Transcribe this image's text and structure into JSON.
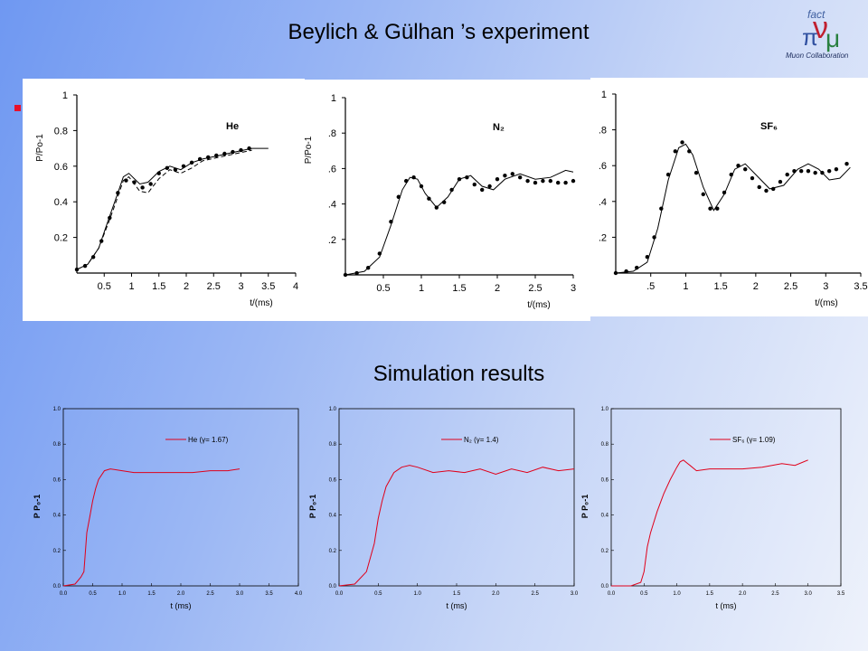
{
  "slide": {
    "title": "Beylich & Gülhan ’s experiment",
    "subtitle": "Simulation results",
    "logo": {
      "line1": "fact",
      "line2": "Muon Collaboration",
      "icon": "nu-mu-logo-icon"
    }
  },
  "chart_data": [
    {
      "type": "line",
      "group": "experiment",
      "ylabel": "P/Po-1",
      "xlabel": "t/(ms)",
      "label": "He",
      "xlim": [
        0,
        4
      ],
      "ylim": [
        0,
        1
      ],
      "xticks": [
        "0.5",
        "1",
        "1.5",
        "2",
        "2.5",
        "3",
        "3.5",
        "4"
      ],
      "yticks": [
        "0.2",
        "0.4",
        "0.6",
        "0.8",
        "1"
      ],
      "series": [
        {
          "style": "solid",
          "x": [
            0,
            0.2,
            0.4,
            0.6,
            0.75,
            0.85,
            0.95,
            1.05,
            1.15,
            1.3,
            1.5,
            1.7,
            1.9,
            2.1,
            2.3,
            2.6,
            2.9,
            3.2,
            3.5
          ],
          "y": [
            0.02,
            0.05,
            0.14,
            0.32,
            0.45,
            0.54,
            0.56,
            0.53,
            0.5,
            0.51,
            0.57,
            0.6,
            0.58,
            0.62,
            0.64,
            0.66,
            0.68,
            0.7,
            0.7
          ]
        },
        {
          "style": "dashed",
          "x": [
            0,
            0.2,
            0.4,
            0.6,
            0.75,
            0.85,
            0.95,
            1.05,
            1.15,
            1.3,
            1.5,
            1.7,
            1.9,
            2.1,
            2.3,
            2.6,
            2.9,
            3.2
          ],
          "y": [
            0.02,
            0.05,
            0.14,
            0.3,
            0.43,
            0.52,
            0.54,
            0.5,
            0.46,
            0.45,
            0.53,
            0.58,
            0.56,
            0.59,
            0.63,
            0.65,
            0.67,
            0.69
          ]
        },
        {
          "style": "dots",
          "x": [
            0,
            0.15,
            0.3,
            0.45,
            0.6,
            0.75,
            0.9,
            1.05,
            1.2,
            1.35,
            1.5,
            1.65,
            1.8,
            1.95,
            2.1,
            2.25,
            2.4,
            2.55,
            2.7,
            2.85,
            3.0,
            3.15
          ],
          "y": [
            0.02,
            0.04,
            0.09,
            0.18,
            0.31,
            0.45,
            0.52,
            0.51,
            0.48,
            0.5,
            0.56,
            0.59,
            0.58,
            0.6,
            0.62,
            0.64,
            0.65,
            0.66,
            0.67,
            0.68,
            0.69,
            0.7
          ]
        }
      ]
    },
    {
      "type": "line",
      "group": "experiment",
      "ylabel": "P/Po-1",
      "xlabel": "t/(ms)",
      "label": "N₂",
      "xlim": [
        0,
        3
      ],
      "ylim": [
        0,
        1
      ],
      "xticks": [
        "0.5",
        "1",
        "1.5",
        "2",
        "2.5",
        "3"
      ],
      "yticks": [
        ".2",
        ".4",
        ".6",
        ".8",
        "1"
      ],
      "series": [
        {
          "style": "solid",
          "x": [
            0,
            0.25,
            0.45,
            0.6,
            0.75,
            0.85,
            0.95,
            1.05,
            1.2,
            1.35,
            1.5,
            1.65,
            1.8,
            1.95,
            2.1,
            2.3,
            2.5,
            2.7,
            2.9,
            3.0
          ],
          "y": [
            0.0,
            0.02,
            0.1,
            0.28,
            0.48,
            0.55,
            0.54,
            0.46,
            0.38,
            0.44,
            0.54,
            0.56,
            0.5,
            0.48,
            0.54,
            0.57,
            0.54,
            0.55,
            0.59,
            0.58
          ]
        },
        {
          "style": "dots",
          "x": [
            0,
            0.15,
            0.3,
            0.45,
            0.6,
            0.7,
            0.8,
            0.9,
            1.0,
            1.1,
            1.2,
            1.3,
            1.4,
            1.5,
            1.6,
            1.7,
            1.8,
            1.9,
            2.0,
            2.1,
            2.2,
            2.3,
            2.4,
            2.5,
            2.6,
            2.7,
            2.8,
            2.9,
            3.0
          ],
          "y": [
            0.0,
            0.01,
            0.04,
            0.12,
            0.3,
            0.44,
            0.53,
            0.55,
            0.5,
            0.43,
            0.38,
            0.41,
            0.48,
            0.54,
            0.55,
            0.51,
            0.48,
            0.5,
            0.54,
            0.56,
            0.57,
            0.55,
            0.53,
            0.52,
            0.53,
            0.53,
            0.52,
            0.52,
            0.53
          ]
        }
      ]
    },
    {
      "type": "line",
      "group": "experiment",
      "ylabel": "P/Po-1",
      "xlabel": "t/(ms)",
      "label": "SF₆",
      "xlim": [
        0,
        3.5
      ],
      "ylim": [
        0,
        1
      ],
      "xticks": [
        ".5",
        "1",
        "1.5",
        "2",
        "2.5",
        "3",
        "3.5"
      ],
      "yticks": [
        ".2",
        ".4",
        ".6",
        ".8",
        "1"
      ],
      "series": [
        {
          "style": "solid",
          "x": [
            0,
            0.25,
            0.45,
            0.6,
            0.75,
            0.9,
            1.0,
            1.1,
            1.25,
            1.4,
            1.55,
            1.7,
            1.85,
            2.0,
            2.2,
            2.4,
            2.6,
            2.75,
            2.9,
            3.05,
            3.2,
            3.35
          ],
          "y": [
            0.0,
            0.01,
            0.06,
            0.25,
            0.52,
            0.7,
            0.72,
            0.66,
            0.48,
            0.35,
            0.44,
            0.58,
            0.61,
            0.55,
            0.47,
            0.49,
            0.58,
            0.61,
            0.58,
            0.52,
            0.53,
            0.59
          ]
        },
        {
          "style": "dots",
          "x": [
            0,
            0.15,
            0.3,
            0.45,
            0.55,
            0.65,
            0.75,
            0.85,
            0.95,
            1.05,
            1.15,
            1.25,
            1.35,
            1.45,
            1.55,
            1.65,
            1.75,
            1.85,
            1.95,
            2.05,
            2.15,
            2.25,
            2.35,
            2.45,
            2.55,
            2.65,
            2.75,
            2.85,
            2.95,
            3.05,
            3.15,
            3.3
          ],
          "y": [
            0.0,
            0.01,
            0.03,
            0.09,
            0.2,
            0.36,
            0.55,
            0.68,
            0.73,
            0.68,
            0.56,
            0.44,
            0.36,
            0.36,
            0.45,
            0.55,
            0.6,
            0.58,
            0.53,
            0.48,
            0.46,
            0.47,
            0.51,
            0.55,
            0.57,
            0.57,
            0.57,
            0.56,
            0.56,
            0.57,
            0.58,
            0.61
          ]
        }
      ]
    },
    {
      "type": "line",
      "group": "simulation",
      "ylabel": "P P₀-1",
      "xlabel": "t (ms)",
      "xlim": [
        0,
        4
      ],
      "ylim": [
        0,
        1
      ],
      "xticks": [
        "0.0",
        "0.5",
        "1.0",
        "1.5",
        "2.0",
        "2.5",
        "3.0",
        "3.5",
        "4.0"
      ],
      "yticks": [
        "0.0",
        "0.2",
        "0.4",
        "0.6",
        "0.8",
        "1.0"
      ],
      "legend": "He (γ= 1.67)",
      "color": "#e0001a",
      "series": [
        {
          "name": "He (γ= 1.67)",
          "x": [
            0,
            0.2,
            0.3,
            0.35,
            0.4,
            0.45,
            0.5,
            0.55,
            0.6,
            0.7,
            0.8,
            1.0,
            1.2,
            1.5,
            1.8,
            2.0,
            2.2,
            2.5,
            2.8,
            3.0
          ],
          "y": [
            0.0,
            0.01,
            0.05,
            0.08,
            0.3,
            0.39,
            0.48,
            0.55,
            0.6,
            0.65,
            0.66,
            0.65,
            0.64,
            0.64,
            0.64,
            0.64,
            0.64,
            0.65,
            0.65,
            0.66
          ]
        }
      ]
    },
    {
      "type": "line",
      "group": "simulation",
      "ylabel": "P P₀-1",
      "xlabel": "t (ms)",
      "xlim": [
        0,
        3
      ],
      "ylim": [
        0,
        1
      ],
      "xticks": [
        "0.0",
        "0.5",
        "1.0",
        "1.5",
        "2.0",
        "2.5",
        "3.0"
      ],
      "yticks": [
        "0.0",
        "0.2",
        "0.4",
        "0.6",
        "0.8",
        "1.0"
      ],
      "legend": "N₂ (γ= 1.4)",
      "color": "#e0001a",
      "series": [
        {
          "name": "N₂ (γ= 1.4)",
          "x": [
            0,
            0.2,
            0.35,
            0.45,
            0.5,
            0.55,
            0.6,
            0.7,
            0.8,
            0.9,
            1.0,
            1.2,
            1.4,
            1.6,
            1.8,
            2.0,
            2.2,
            2.4,
            2.6,
            2.8,
            3.0
          ],
          "y": [
            0.0,
            0.01,
            0.08,
            0.24,
            0.38,
            0.48,
            0.56,
            0.64,
            0.67,
            0.68,
            0.67,
            0.64,
            0.65,
            0.64,
            0.66,
            0.63,
            0.66,
            0.64,
            0.67,
            0.65,
            0.66
          ]
        }
      ]
    },
    {
      "type": "line",
      "group": "simulation",
      "ylabel": "P P₀-1",
      "xlabel": "t (ms)",
      "xlim": [
        0,
        3.5
      ],
      "ylim": [
        0,
        1
      ],
      "xticks": [
        "0.0",
        "0.5",
        "1.0",
        "1.5",
        "2.0",
        "2.5",
        "3.0",
        "3.5"
      ],
      "yticks": [
        "0.0",
        "0.2",
        "0.4",
        "0.6",
        "0.8",
        "1.0"
      ],
      "legend": "SF₆ (γ= 1.09)",
      "color": "#e0001a",
      "series": [
        {
          "name": "SF₆ (γ= 1.09)",
          "x": [
            0,
            0.3,
            0.45,
            0.5,
            0.55,
            0.6,
            0.7,
            0.8,
            0.9,
            1.0,
            1.05,
            1.1,
            1.2,
            1.3,
            1.5,
            1.7,
            2.0,
            2.3,
            2.6,
            2.8,
            3.0
          ],
          "y": [
            0.0,
            0.0,
            0.02,
            0.08,
            0.22,
            0.3,
            0.42,
            0.52,
            0.6,
            0.67,
            0.7,
            0.71,
            0.68,
            0.65,
            0.66,
            0.66,
            0.66,
            0.67,
            0.69,
            0.68,
            0.71
          ]
        }
      ]
    }
  ]
}
